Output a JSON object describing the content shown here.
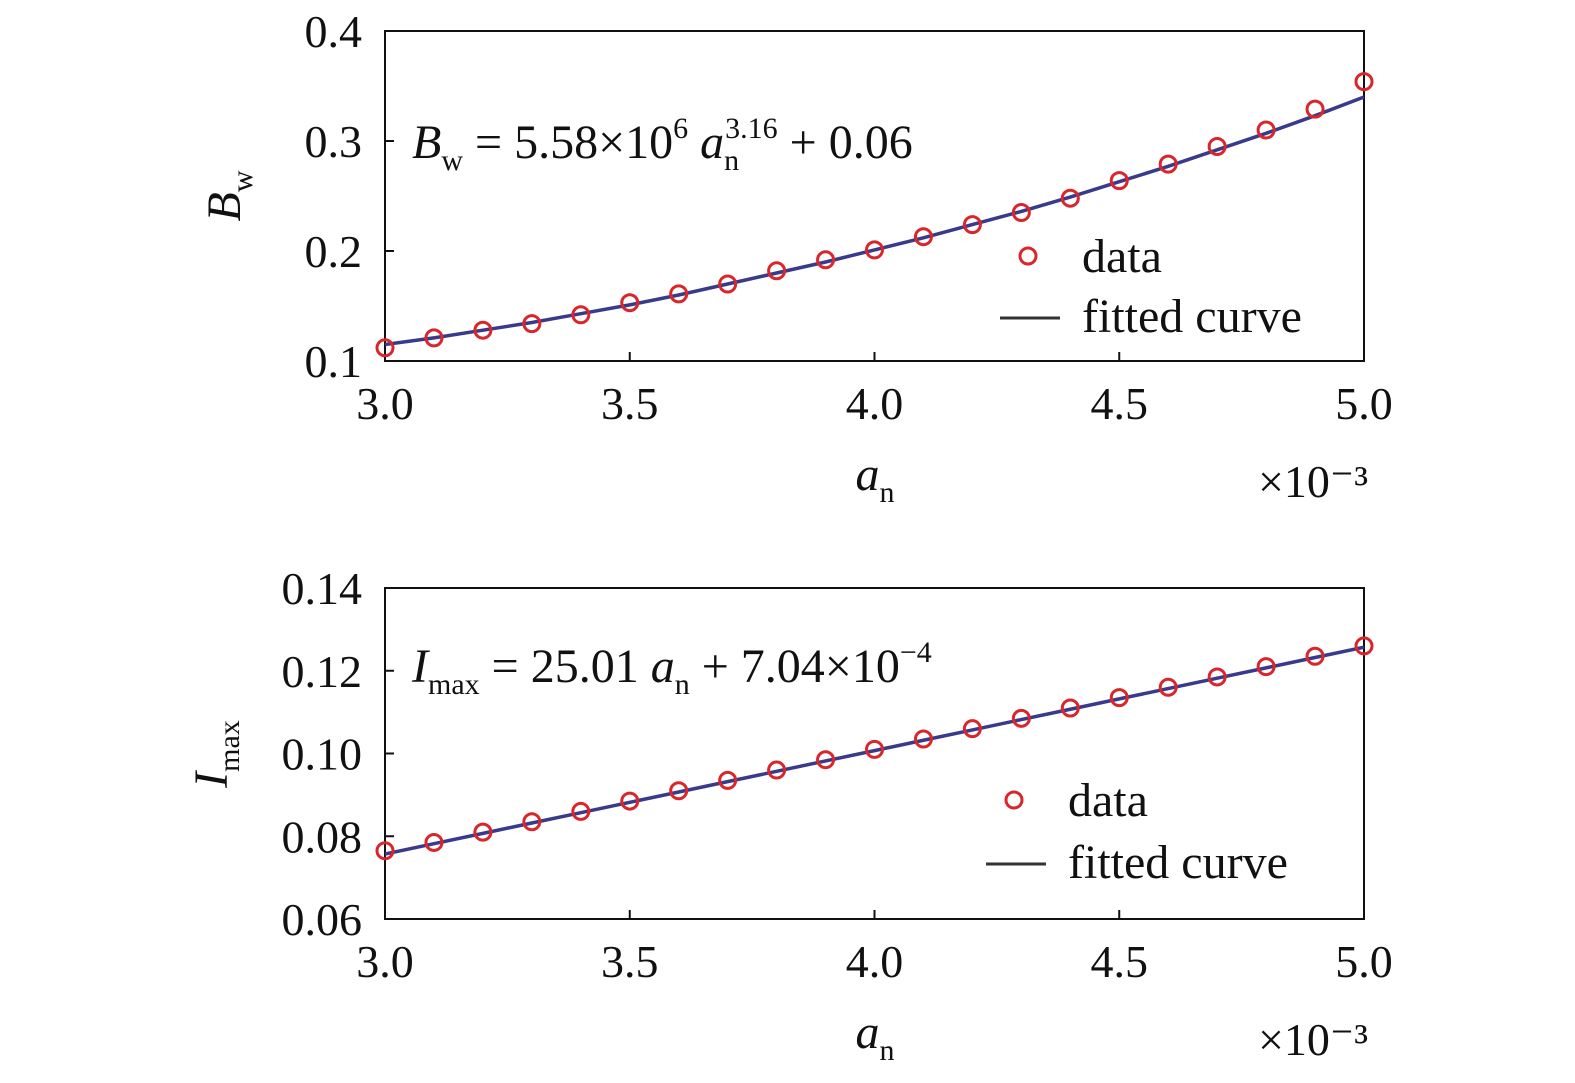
{
  "chart_data": [
    {
      "type": "scatter",
      "x": [
        3.0,
        3.1,
        3.2,
        3.3,
        3.4,
        3.5,
        3.6,
        3.7,
        3.8,
        3.9,
        4.0,
        4.1,
        4.2,
        4.3,
        4.4,
        4.5,
        4.6,
        4.7,
        4.8,
        4.9,
        5.0
      ],
      "x_scale_label": "×10⁻³",
      "xlabel": "a_n",
      "ylabel": "B_w",
      "xlim": [
        3.0,
        5.0
      ],
      "ylim": [
        0.1,
        0.4
      ],
      "xticks": [
        "3.0",
        "3.5",
        "4.0",
        "4.5",
        "5.0"
      ],
      "yticks": [
        "0.1",
        "0.2",
        "0.3",
        "0.4"
      ],
      "equation": {
        "lhs_main": "B",
        "lhs_sub": "w",
        "rhs_pre": "= 5.58×10",
        "rhs_exp": "6",
        "var_main": "a",
        "var_sub": "n",
        "var_exp": "3.16",
        "rhs_post": "+ 0.06"
      },
      "legend_position": "lower-right",
      "grid": false,
      "series": [
        {
          "name": "data",
          "kind": "markers",
          "color": "#d9262b",
          "values": [
            0.112,
            0.121,
            0.128,
            0.134,
            0.142,
            0.153,
            0.161,
            0.17,
            0.182,
            0.192,
            0.201,
            0.213,
            0.224,
            0.235,
            0.248,
            0.264,
            0.279,
            0.295,
            0.31,
            0.329,
            0.354
          ]
        },
        {
          "name": "fitted curve",
          "kind": "line",
          "color": "#3a3a8c",
          "values": [
            0.115,
            0.121,
            0.128,
            0.135,
            0.143,
            0.151,
            0.16,
            0.17,
            0.18,
            0.19,
            0.201,
            0.212,
            0.224,
            0.236,
            0.249,
            0.263,
            0.277,
            0.292,
            0.307,
            0.323,
            0.34
          ]
        }
      ]
    },
    {
      "type": "scatter",
      "x": [
        3.0,
        3.1,
        3.2,
        3.3,
        3.4,
        3.5,
        3.6,
        3.7,
        3.8,
        3.9,
        4.0,
        4.1,
        4.2,
        4.3,
        4.4,
        4.5,
        4.6,
        4.7,
        4.8,
        4.9,
        5.0
      ],
      "x_scale_label": "×10⁻³",
      "xlabel": "a_n",
      "ylabel": "I_max",
      "xlim": [
        3.0,
        5.0
      ],
      "ylim": [
        0.06,
        0.14
      ],
      "xticks": [
        "3.0",
        "3.5",
        "4.0",
        "4.5",
        "5.0"
      ],
      "yticks": [
        "0.06",
        "0.08",
        "0.10",
        "0.12",
        "0.14"
      ],
      "equation": {
        "lhs_main": "I",
        "lhs_sub": "max",
        "rhs_pre": "= 25.01",
        "var_main": "a",
        "var_sub": "n",
        "rhs_post": "+ 7.04×10",
        "post_exp": "−4"
      },
      "legend_position": "lower-right",
      "grid": false,
      "series": [
        {
          "name": "data",
          "kind": "markers",
          "color": "#d9262b",
          "values": [
            0.0765,
            0.0785,
            0.081,
            0.0835,
            0.086,
            0.0885,
            0.091,
            0.0935,
            0.096,
            0.0985,
            0.101,
            0.1035,
            0.106,
            0.1085,
            0.111,
            0.1135,
            0.116,
            0.1185,
            0.121,
            0.1235,
            0.126
          ]
        },
        {
          "name": "fitted curve",
          "kind": "line",
          "color": "#3a3a8c",
          "values": [
            0.0757,
            0.0782,
            0.0807,
            0.0832,
            0.0857,
            0.0882,
            0.0907,
            0.0932,
            0.0957,
            0.0982,
            0.1007,
            0.1032,
            0.1057,
            0.1082,
            0.1107,
            0.1132,
            0.1157,
            0.1182,
            0.1207,
            0.1232,
            0.1257
          ]
        }
      ]
    }
  ]
}
